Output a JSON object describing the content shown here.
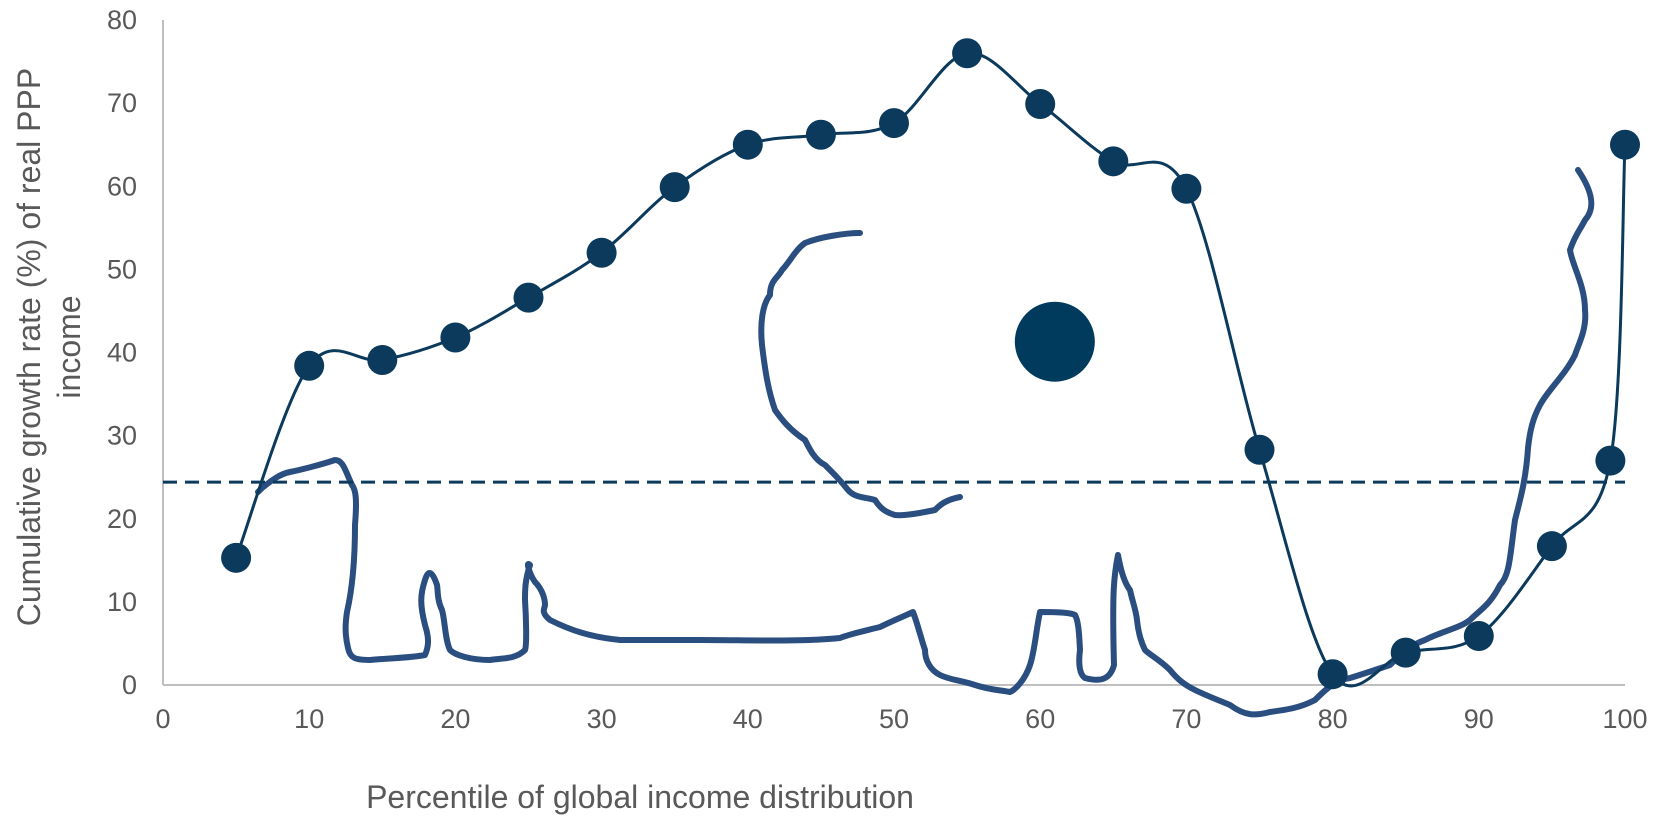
{
  "chart_data": {
    "type": "line",
    "title": "",
    "xlabel": "Percentile of global income distribution",
    "ylabel_lines": [
      "Cumulative growth rate (%) of real PPP",
      "income"
    ],
    "xlim": [
      0,
      100
    ],
    "ylim": [
      0,
      80
    ],
    "x_ticks": [
      0,
      10,
      20,
      30,
      40,
      50,
      60,
      70,
      80,
      90,
      100
    ],
    "y_ticks": [
      0,
      10,
      20,
      30,
      40,
      50,
      60,
      70,
      80
    ],
    "grid": false,
    "legend": "none",
    "colors": {
      "series": "#0b3a5c",
      "elephant": "#2a4e7f",
      "reference_line": "#0b3a5c",
      "axis": "#bfbfbf",
      "text": "#595959"
    },
    "series": [
      {
        "x": [
          5,
          10,
          15,
          20,
          25,
          30,
          35,
          40,
          45,
          50,
          55,
          60,
          65,
          70,
          75,
          80,
          85,
          90,
          95,
          99,
          100
        ],
        "values": [
          15.3,
          38.4,
          39.1,
          41.8,
          46.6,
          52.0,
          59.9,
          65.0,
          66.2,
          67.6,
          76.0,
          69.9,
          63.0,
          59.7,
          28.3,
          1.3,
          3.9,
          5.9,
          16.7,
          27.0,
          65.0
        ]
      }
    ],
    "reference_line": {
      "y": 24.4,
      "style": "dashed"
    },
    "decoration": {
      "eye": {
        "x": 61.0,
        "y": 41.3
      }
    }
  }
}
